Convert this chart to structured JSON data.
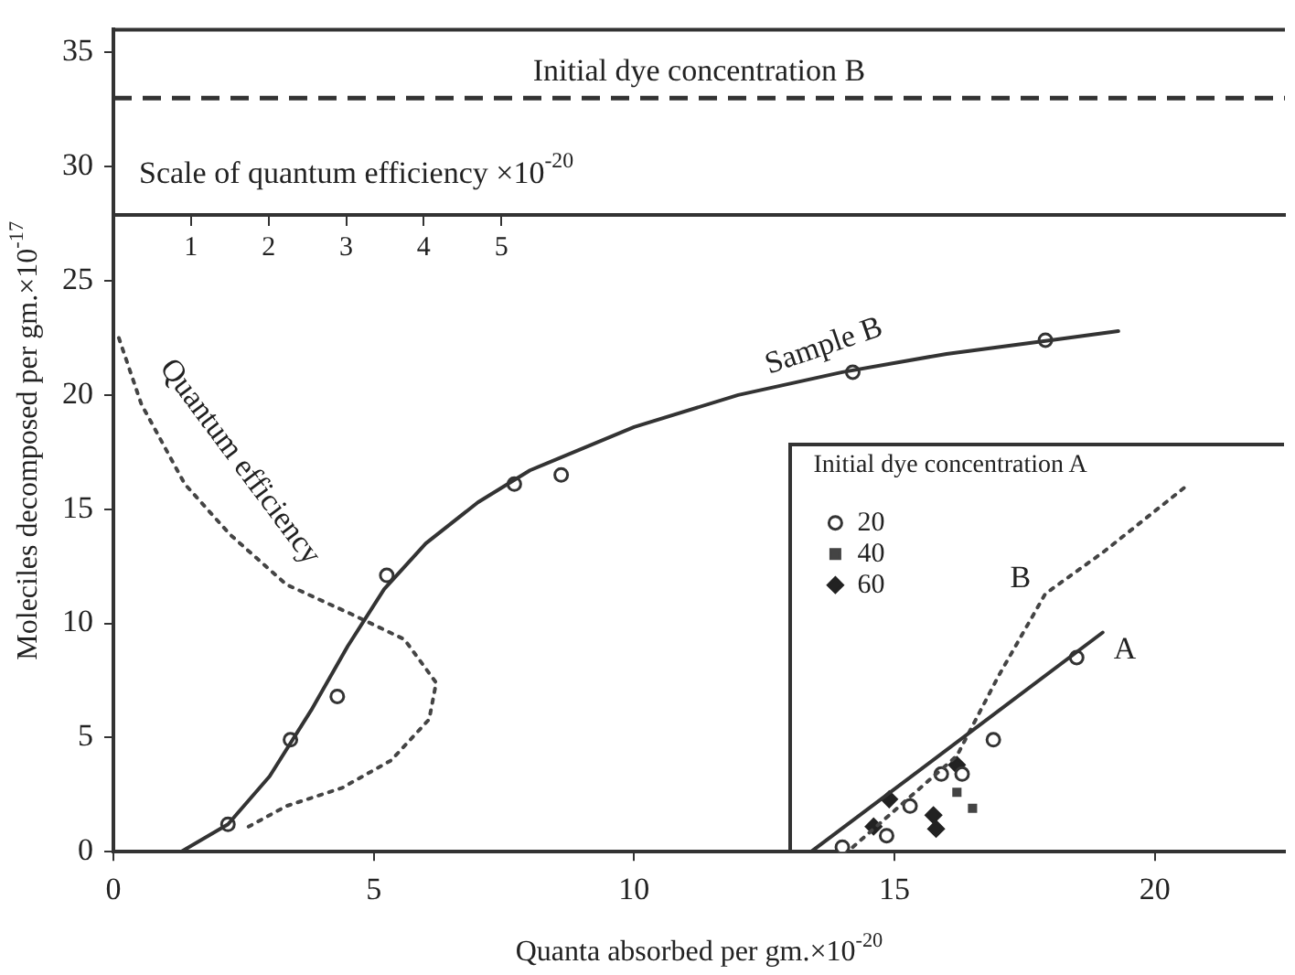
{
  "chart_data": {
    "type": "line",
    "xlabel": "Quanta absorbed per gm.×10$^{-20}$",
    "ylabel": "Moleciles decomposed per gm.×10$^{-17}$",
    "x2label": "Scale of quantum efficiency ×10$^{-20}$",
    "legend_title": "Initial dye concentration A",
    "xlim": [
      0,
      22.5
    ],
    "xticks": [
      0,
      5,
      10,
      15,
      20
    ],
    "ylim": [
      0,
      36
    ],
    "yticks": [
      0,
      5,
      10,
      15,
      20,
      25,
      30,
      35
    ],
    "x2lim": [
      0,
      15.1
    ],
    "x2ticks": [
      1,
      2,
      3,
      4,
      5
    ],
    "grid": false,
    "legend": "right",
    "ref_lines": [
      {
        "axis": "y",
        "value": 33,
        "label": "Initial dye concentration B",
        "line_style": "dashed",
        "color": "#333333"
      }
    ],
    "series": [
      {
        "name": "Sample B",
        "color": "#333333",
        "marker": "none",
        "line_style": "solid",
        "x": [
          0,
          1.3,
          2.2,
          3.0,
          3.8,
          4.5,
          5.2,
          6.0,
          7.0,
          8.0,
          10,
          12,
          14,
          16,
          18,
          19.3
        ],
        "values": [
          0,
          0,
          1.2,
          3.3,
          6.2,
          9.0,
          11.5,
          13.5,
          15.3,
          16.7,
          18.6,
          20.0,
          21.0,
          21.8,
          22.4,
          22.8
        ]
      },
      {
        "type": "scatter",
        "color": "#333333",
        "marker": "circle",
        "x": [
          2.2,
          3.4,
          4.3,
          5.25,
          7.7,
          8.6,
          14.2,
          17.9
        ],
        "values": [
          1.2,
          4.9,
          6.8,
          12.1,
          16.1,
          16.5,
          21.0,
          22.4
        ]
      },
      {
        "name": "Quantum efficiency",
        "axis": "x2",
        "color": "#444444",
        "marker": "none",
        "line_style": "dotted",
        "x": [
          0.07,
          0.36,
          0.92,
          1.5,
          2.23,
          3.07,
          3.75,
          4.16,
          4.07,
          3.58,
          2.95,
          2.23,
          1.69
        ],
        "values": [
          22.5,
          19.6,
          16.1,
          13.9,
          11.7,
          10.4,
          9.3,
          7.4,
          5.8,
          4.0,
          2.8,
          2.0,
          1.0
        ]
      },
      {
        "name": "A",
        "color": "#333333",
        "marker": "none",
        "line_style": "solid",
        "x": [
          13.4,
          19.0
        ],
        "values": [
          0,
          9.6
        ]
      },
      {
        "name": "B",
        "color": "#444444",
        "marker": "none",
        "line_style": "dotted",
        "x": [
          14.2,
          16.2,
          17.0,
          17.9,
          19.0,
          20.6
        ],
        "values": [
          0.2,
          4.2,
          7.7,
          11.3,
          13.1,
          16.0
        ]
      },
      {
        "name": "20",
        "type": "scatter",
        "color": "#333333",
        "marker": "circle",
        "x": [
          14.0,
          14.85,
          15.3,
          15.9,
          16.3,
          16.9,
          18.5
        ],
        "values": [
          0.2,
          0.7,
          2.0,
          3.4,
          3.4,
          4.9,
          8.5
        ]
      },
      {
        "name": "40",
        "type": "scatter",
        "color": "#444444",
        "marker": "square",
        "x": [
          16.5,
          16.2
        ],
        "values": [
          1.9,
          2.6
        ]
      },
      {
        "name": "60",
        "type": "scatter",
        "color": "#222222",
        "marker": "diamond",
        "x": [
          14.9,
          15.8,
          14.6,
          16.2,
          15.75
        ],
        "values": [
          2.3,
          1.0,
          1.1,
          3.8,
          1.6
        ]
      }
    ]
  }
}
